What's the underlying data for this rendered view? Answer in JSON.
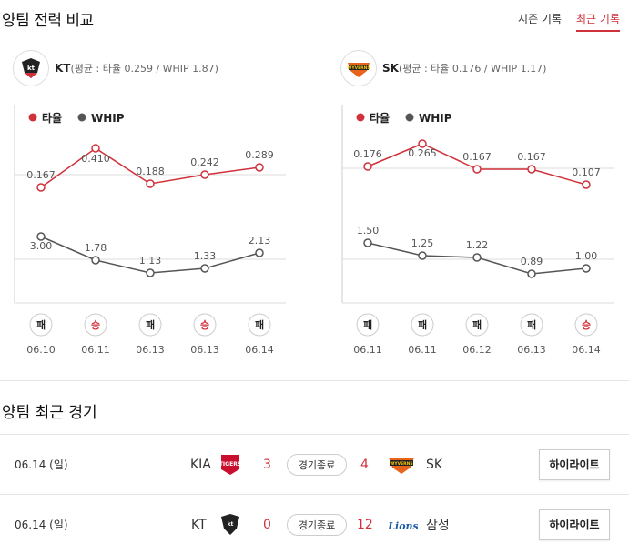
{
  "header": {
    "title": "양팀 전력 비교",
    "tabs": [
      "시즌 기록",
      "최근 기록"
    ],
    "active_tab": "최근 기록"
  },
  "legend": {
    "avg": "타율",
    "whip": "WHIP"
  },
  "colors": {
    "accent": "#d0313b",
    "gray": "#555555"
  },
  "teams": [
    {
      "name": "KT",
      "summary": "(평균 : 타율 0.259 / WHIP 1.87)",
      "logo_text": "kt wiz",
      "avg": [
        "0.167",
        "0.410",
        "0.188",
        "0.242",
        "0.289"
      ],
      "whip": [
        "3.00",
        "1.78",
        "1.13",
        "1.33",
        "2.13"
      ],
      "results": [
        "패",
        "승",
        "패",
        "승",
        "패"
      ],
      "dates": [
        "06.10",
        "06.11",
        "06.13",
        "06.13",
        "06.14"
      ]
    },
    {
      "name": "SK",
      "summary": "(평균 : 타율 0.176 / WHIP 1.17)",
      "logo_text": "WYVERNS",
      "avg": [
        "0.176",
        "0.265",
        "0.167",
        "0.167",
        "0.107"
      ],
      "whip": [
        "1.50",
        "1.25",
        "1.22",
        "0.89",
        "1.00"
      ],
      "results": [
        "패",
        "패",
        "패",
        "패",
        "승"
      ],
      "dates": [
        "06.11",
        "06.11",
        "06.12",
        "06.13",
        "06.14"
      ]
    }
  ],
  "recent": {
    "title": "양팀 최근 경기",
    "games": [
      {
        "date": "06.14 (일)",
        "home": "KIA",
        "home_logo": "TIGERS",
        "home_score": "3",
        "status": "경기종료",
        "away_score": "4",
        "away": "SK",
        "away_logo": "WYVERNS",
        "button": "하이라이트"
      },
      {
        "date": "06.14 (일)",
        "home": "KT",
        "home_logo": "kt wiz",
        "home_score": "0",
        "status": "경기종료",
        "away_score": "12",
        "away": "삼성",
        "away_logo": "Lions",
        "button": "하이라이트"
      }
    ]
  }
}
